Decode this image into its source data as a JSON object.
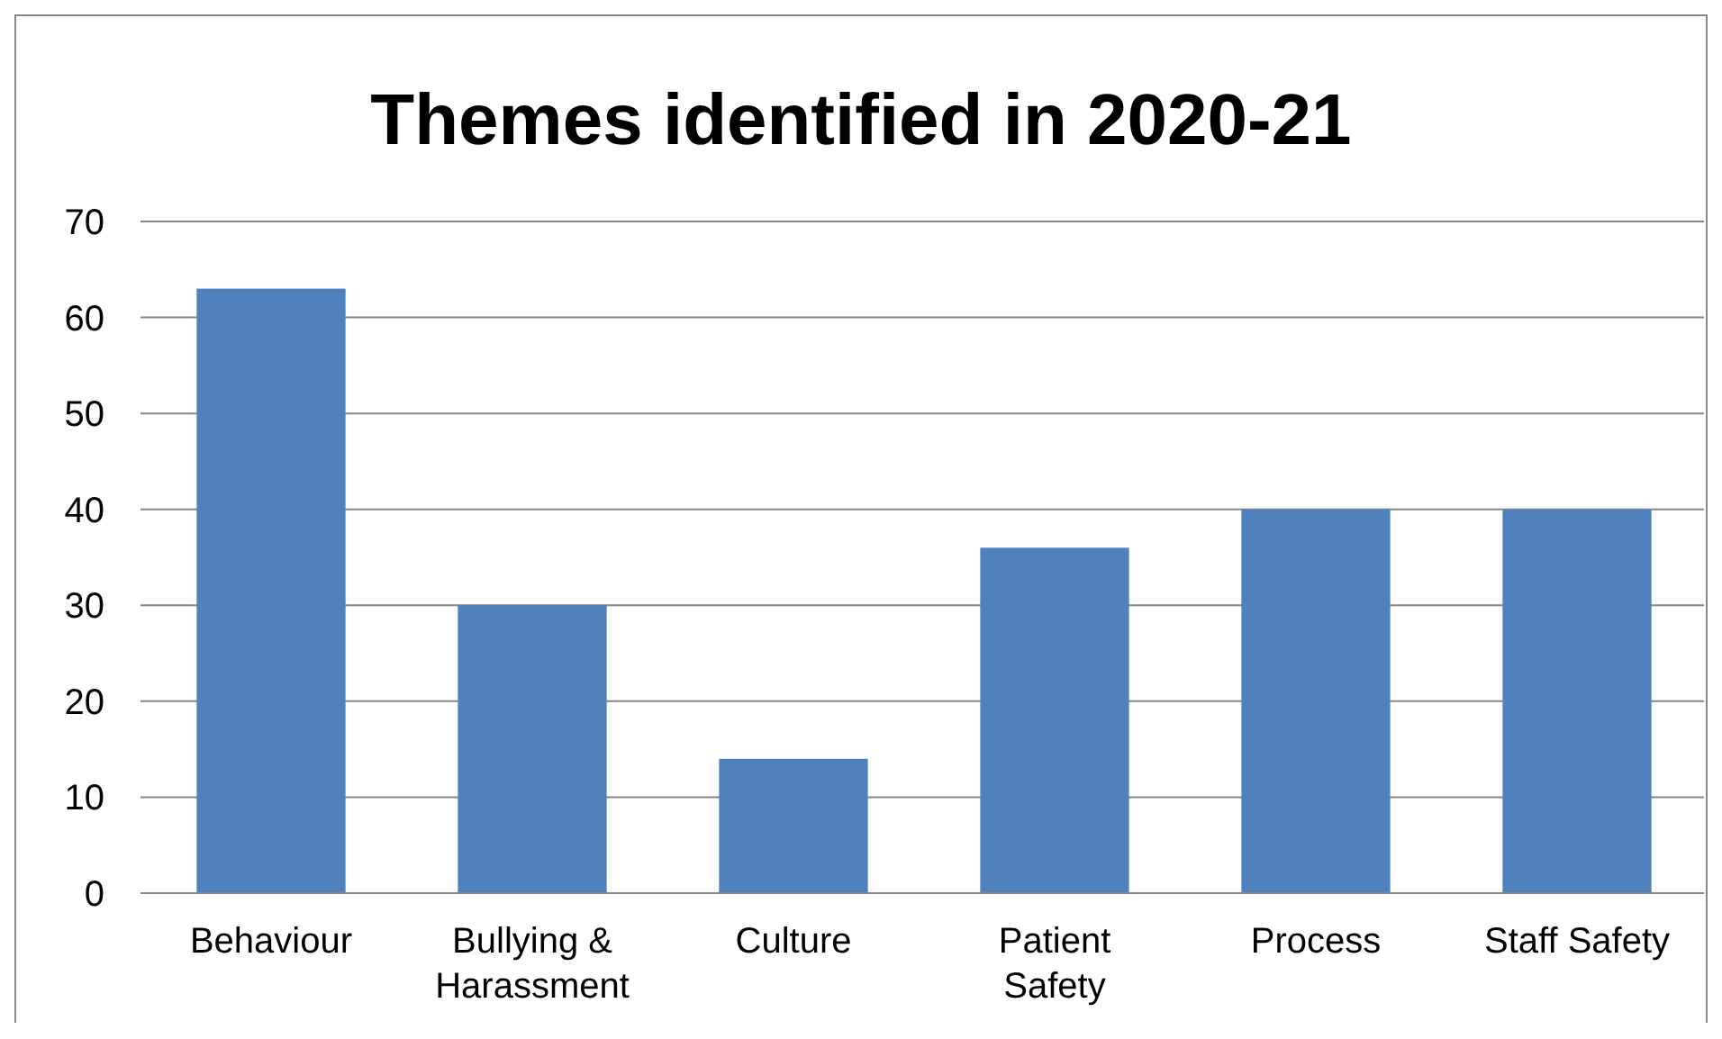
{
  "chart_data": {
    "type": "bar",
    "title": "Themes identified in 2020-21",
    "categories": [
      "Behaviour",
      "Bullying & Harassment",
      "Culture",
      "Patient Safety",
      "Process",
      "Staff Safety"
    ],
    "values": [
      63,
      30,
      14,
      36,
      40,
      40
    ],
    "color": "#4f81bd",
    "ylim": [
      0,
      70
    ],
    "yticks": [
      0,
      10,
      20,
      30,
      40,
      50,
      60,
      70
    ],
    "grid": "y"
  }
}
